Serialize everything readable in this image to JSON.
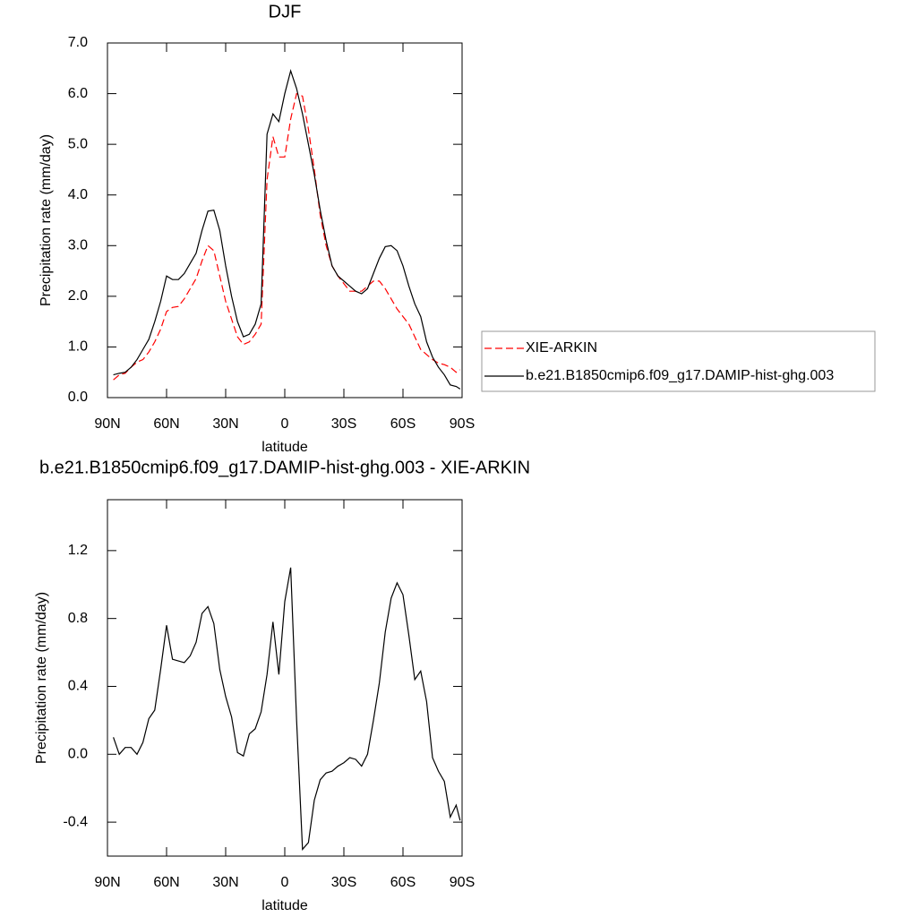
{
  "chart_data": [
    {
      "type": "line",
      "title": "DJF",
      "x_label": "latitude",
      "y_label": "Precipitation rate (mm/day)",
      "x": [
        87,
        84,
        81,
        78,
        75,
        72,
        69,
        66,
        63,
        60,
        57,
        54,
        51,
        48,
        45,
        42,
        39,
        36,
        33,
        30,
        27,
        24,
        21,
        18,
        15,
        12,
        9,
        6,
        3,
        0,
        -3,
        -6,
        -9,
        -12,
        -15,
        -18,
        -21,
        -24,
        -27,
        -30,
        -33,
        -36,
        -39,
        -42,
        -45,
        -48,
        -51,
        -54,
        -57,
        -60,
        -63,
        -66,
        -69,
        -72,
        -75,
        -78,
        -81,
        -84,
        -87,
        -89
      ],
      "series": [
        {
          "name": "XIE-ARKIN",
          "color": "#ff0000",
          "style": "dashed",
          "values": [
            0.35,
            0.45,
            0.48,
            0.6,
            0.7,
            0.75,
            0.9,
            1.1,
            1.35,
            1.7,
            1.78,
            1.8,
            1.95,
            2.15,
            2.35,
            2.7,
            3.0,
            2.9,
            2.4,
            1.9,
            1.55,
            1.2,
            1.05,
            1.1,
            1.25,
            1.45,
            4.3,
            5.15,
            4.75,
            4.75,
            5.5,
            6.0,
            5.95,
            5.3,
            4.5,
            3.6,
            3.0,
            2.6,
            2.4,
            2.25,
            2.1,
            2.1,
            2.1,
            2.2,
            2.3,
            2.3,
            2.15,
            1.95,
            1.75,
            1.6,
            1.45,
            1.2,
            0.95,
            0.85,
            0.75,
            0.68,
            0.65,
            0.6,
            0.5,
            0.55
          ]
        },
        {
          "name": "b.e21.B1850cmip6.f09_g17.DAMIP-hist-ghg.003",
          "color": "#000000",
          "style": "solid",
          "values": [
            0.45,
            0.48,
            0.5,
            0.6,
            0.75,
            0.95,
            1.15,
            1.5,
            1.9,
            2.4,
            2.33,
            2.33,
            2.45,
            2.65,
            2.85,
            3.3,
            3.68,
            3.7,
            3.3,
            2.6,
            2.0,
            1.5,
            1.2,
            1.25,
            1.45,
            1.85,
            5.2,
            5.6,
            5.45,
            6.0,
            6.45,
            6.1,
            5.6,
            5.0,
            4.4,
            3.7,
            3.1,
            2.6,
            2.4,
            2.3,
            2.2,
            2.1,
            2.05,
            2.15,
            2.45,
            2.75,
            2.98,
            3.0,
            2.9,
            2.6,
            2.2,
            1.85,
            1.6,
            1.1,
            0.8,
            0.6,
            0.45,
            0.25,
            0.22,
            0.17
          ]
        }
      ],
      "xlim": [
        90,
        -90
      ],
      "xticks": [
        {
          "value": 90,
          "label": "90N"
        },
        {
          "value": 60,
          "label": "60N"
        },
        {
          "value": 30,
          "label": "30N"
        },
        0,
        {
          "value": -30,
          "label": "30S"
        },
        {
          "value": -60,
          "label": "60S"
        },
        {
          "value": -90,
          "label": "90S"
        }
      ],
      "ylim": [
        0,
        7
      ],
      "yticks": [
        {
          "value": 0,
          "label": "0.0"
        },
        {
          "value": 1,
          "label": "1.0"
        },
        {
          "value": 2,
          "label": "2.0"
        },
        {
          "value": 3,
          "label": "3.0"
        },
        {
          "value": 4,
          "label": "4.0"
        },
        {
          "value": 5,
          "label": "5.0"
        },
        {
          "value": 6,
          "label": "6.0"
        },
        {
          "value": 7,
          "label": "7.0"
        }
      ],
      "legend": "right"
    },
    {
      "type": "line",
      "title": "b.e21.B1850cmip6.f09_g17.DAMIP-hist-ghg.003 - XIE-ARKIN",
      "x_label": "latitude",
      "y_label": "Precipitation rate (mm/day)",
      "x": [
        87,
        84,
        81,
        78,
        75,
        72,
        69,
        66,
        63,
        60,
        57,
        54,
        51,
        48,
        45,
        42,
        39,
        36,
        33,
        30,
        27,
        24,
        21,
        18,
        15,
        12,
        9,
        6,
        3,
        0,
        -3,
        -6,
        -9,
        -12,
        -15,
        -18,
        -21,
        -24,
        -27,
        -30,
        -33,
        -36,
        -39,
        -42,
        -45,
        -48,
        -51,
        -54,
        -57,
        -60,
        -63,
        -66,
        -69,
        -72,
        -75,
        -78,
        -81,
        -84,
        -87,
        -89
      ],
      "series": [
        {
          "color": "#000000",
          "style": "solid",
          "values": [
            0.1,
            0.0,
            0.04,
            0.04,
            0.0,
            0.07,
            0.21,
            0.26,
            0.5,
            0.76,
            0.56,
            0.55,
            0.54,
            0.58,
            0.66,
            0.83,
            0.87,
            0.77,
            0.5,
            0.34,
            0.22,
            0.01,
            -0.01,
            0.12,
            0.15,
            0.25,
            0.47,
            0.78,
            0.47,
            0.9,
            1.1,
            0.2,
            -0.56,
            -0.52,
            -0.27,
            -0.15,
            -0.11,
            -0.1,
            -0.07,
            -0.05,
            -0.02,
            -0.03,
            -0.07,
            0.0,
            0.2,
            0.42,
            0.72,
            0.92,
            1.01,
            0.94,
            0.7,
            0.44,
            0.49,
            0.31,
            -0.02,
            -0.1,
            -0.16,
            -0.37,
            -0.3,
            -0.39
          ]
        }
      ],
      "xlim": [
        90,
        -90
      ],
      "xticks": [
        {
          "value": 90,
          "label": "90N"
        },
        {
          "value": 60,
          "label": "60N"
        },
        {
          "value": 30,
          "label": "30N"
        },
        0,
        {
          "value": -30,
          "label": "30S"
        },
        {
          "value": -60,
          "label": "60S"
        },
        {
          "value": -90,
          "label": "90S"
        }
      ],
      "ylim": [
        -0.6,
        1.5
      ],
      "yticks": [
        -0.4,
        {
          "value": 0,
          "label": "0.0"
        },
        0.4,
        0.8,
        1.2
      ]
    }
  ]
}
